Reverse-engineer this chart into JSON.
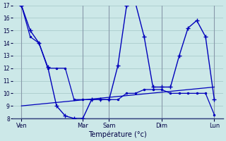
{
  "title": "Température (°c)",
  "bg_color": "#cce8e8",
  "grid_color": "#aacccc",
  "line_color": "#0000bb",
  "ylim": [
    8,
    17
  ],
  "yticks": [
    8,
    9,
    10,
    11,
    12,
    13,
    14,
    15,
    16,
    17
  ],
  "xlim": [
    0,
    24
  ],
  "x_ticks_pos": [
    1,
    8,
    11,
    17,
    23
  ],
  "x_ticks_labels": [
    "Ven",
    "Mar",
    "Sam",
    "Dim",
    "Lun"
  ],
  "vlines": [
    1,
    8,
    11,
    17,
    23
  ],
  "line_peaks": {
    "x": [
      1,
      2,
      3,
      4,
      5,
      6,
      7,
      8,
      9,
      10,
      11,
      12,
      13,
      14,
      15,
      16,
      17,
      18,
      19,
      20,
      21,
      22,
      23
    ],
    "y": [
      17,
      15,
      14,
      12.1,
      9.0,
      8.2,
      8.0,
      8.0,
      9.5,
      9.5,
      9.5,
      12.2,
      17.0,
      17.2,
      14.5,
      10.5,
      10.5,
      10.5,
      13.0,
      15.2,
      15.8,
      14.5,
      9.5
    ]
  },
  "line_smooth": {
    "x": [
      1,
      2,
      3,
      4,
      5,
      6,
      7,
      8,
      9,
      10,
      11,
      12,
      13,
      14,
      15,
      16,
      17,
      18,
      19,
      20,
      21,
      22,
      23
    ],
    "y": [
      17.0,
      14.5,
      14.0,
      12.0,
      12.0,
      12.0,
      9.5,
      9.5,
      9.5,
      9.5,
      9.5,
      9.5,
      10.0,
      10.0,
      10.3,
      10.3,
      10.3,
      10.0,
      10.0,
      10.0,
      10.0,
      10.0,
      8.3
    ]
  },
  "line_flat8": {
    "x": [
      1,
      23
    ],
    "y": [
      8.0,
      8.0
    ]
  },
  "line_trend": {
    "x": [
      1,
      23
    ],
    "y": [
      9.0,
      10.5
    ]
  }
}
